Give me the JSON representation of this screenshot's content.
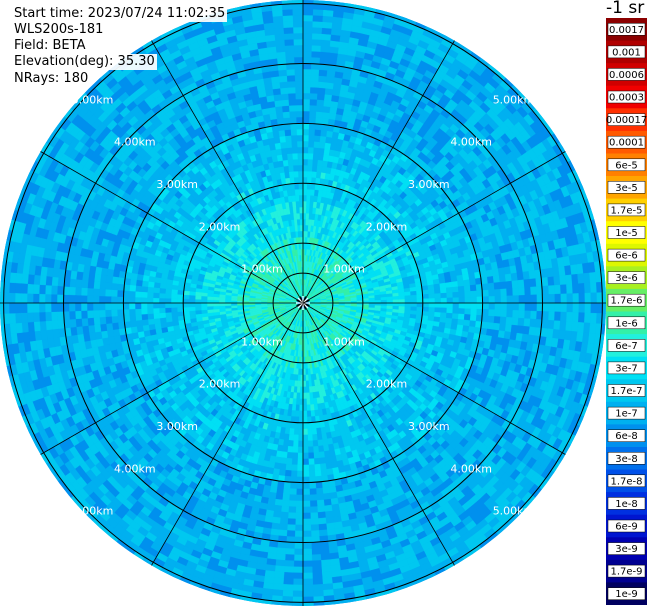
{
  "header": {
    "start_time": "Start time: 2023/07/24 11:02:35",
    "instrument": "WLS200s-181",
    "field": "Field: BETA",
    "elevation": "Elevation(deg): 35.30",
    "nrays": "NRays: 180"
  },
  "colorbar": {
    "unit_label": "-1 sr",
    "ticks": [
      {
        "label": "0.0017",
        "color": "#8b0000"
      },
      {
        "label": "0.001",
        "color": "#b00000"
      },
      {
        "label": "0.0006",
        "color": "#d00000"
      },
      {
        "label": "0.0003",
        "color": "#f00000"
      },
      {
        "label": "0.00017",
        "color": "#ff3000"
      },
      {
        "label": "0.0001",
        "color": "#ff5a00"
      },
      {
        "label": "6e-5",
        "color": "#ff8000"
      },
      {
        "label": "3e-5",
        "color": "#ffa500"
      },
      {
        "label": "1.7e-5",
        "color": "#ffd000"
      },
      {
        "label": "1e-5",
        "color": "#ffff00"
      },
      {
        "label": "6e-6",
        "color": "#ddf700"
      },
      {
        "label": "3e-6",
        "color": "#a8f020"
      },
      {
        "label": "1.7e-6",
        "color": "#66ee66"
      },
      {
        "label": "1e-6",
        "color": "#33f0a8"
      },
      {
        "label": "6e-7",
        "color": "#22f0dd"
      },
      {
        "label": "3e-7",
        "color": "#00e0f4"
      },
      {
        "label": "1.7e-7",
        "color": "#00c8f0"
      },
      {
        "label": "1e-7",
        "color": "#00b0f0"
      },
      {
        "label": "6e-8",
        "color": "#0090ee"
      },
      {
        "label": "3e-8",
        "color": "#0070ec"
      },
      {
        "label": "1.7e-8",
        "color": "#0050e8"
      },
      {
        "label": "1e-8",
        "color": "#0030e0"
      },
      {
        "label": "6e-9",
        "color": "#0015d0"
      },
      {
        "label": "3e-9",
        "color": "#0000b0"
      },
      {
        "label": "1.7e-9",
        "color": "#000090"
      },
      {
        "label": "1e-9",
        "color": "#000060"
      }
    ]
  },
  "chart_data": {
    "type": "heatmap",
    "projection": "polar (PPI scan)",
    "field": "BETA",
    "elevation_deg": 35.3,
    "nrays": 180,
    "range_rings_km": [
      1,
      2,
      3,
      4,
      5
    ],
    "range_labels": [
      "1.00km",
      "2.00km",
      "3.00km",
      "4.00km",
      "5.00km"
    ],
    "max_range_km": 5.06,
    "radial_line_angles_deg": [
      0,
      30,
      60,
      90,
      120,
      150,
      180,
      210,
      240,
      270,
      300,
      330
    ],
    "approx_radial_profile": [
      {
        "range_km": 0.5,
        "beta": "1.7e-6"
      },
      {
        "range_km": 1.0,
        "beta": "1e-6"
      },
      {
        "range_km": 1.5,
        "beta": "6e-7"
      },
      {
        "range_km": 2.0,
        "beta": "3e-7"
      },
      {
        "range_km": 3.0,
        "beta": "1e-7"
      },
      {
        "range_km": 4.0,
        "beta": "6e-8"
      },
      {
        "range_km": 5.0,
        "beta": "6e-8"
      }
    ],
    "background_color": "#0090ee"
  }
}
